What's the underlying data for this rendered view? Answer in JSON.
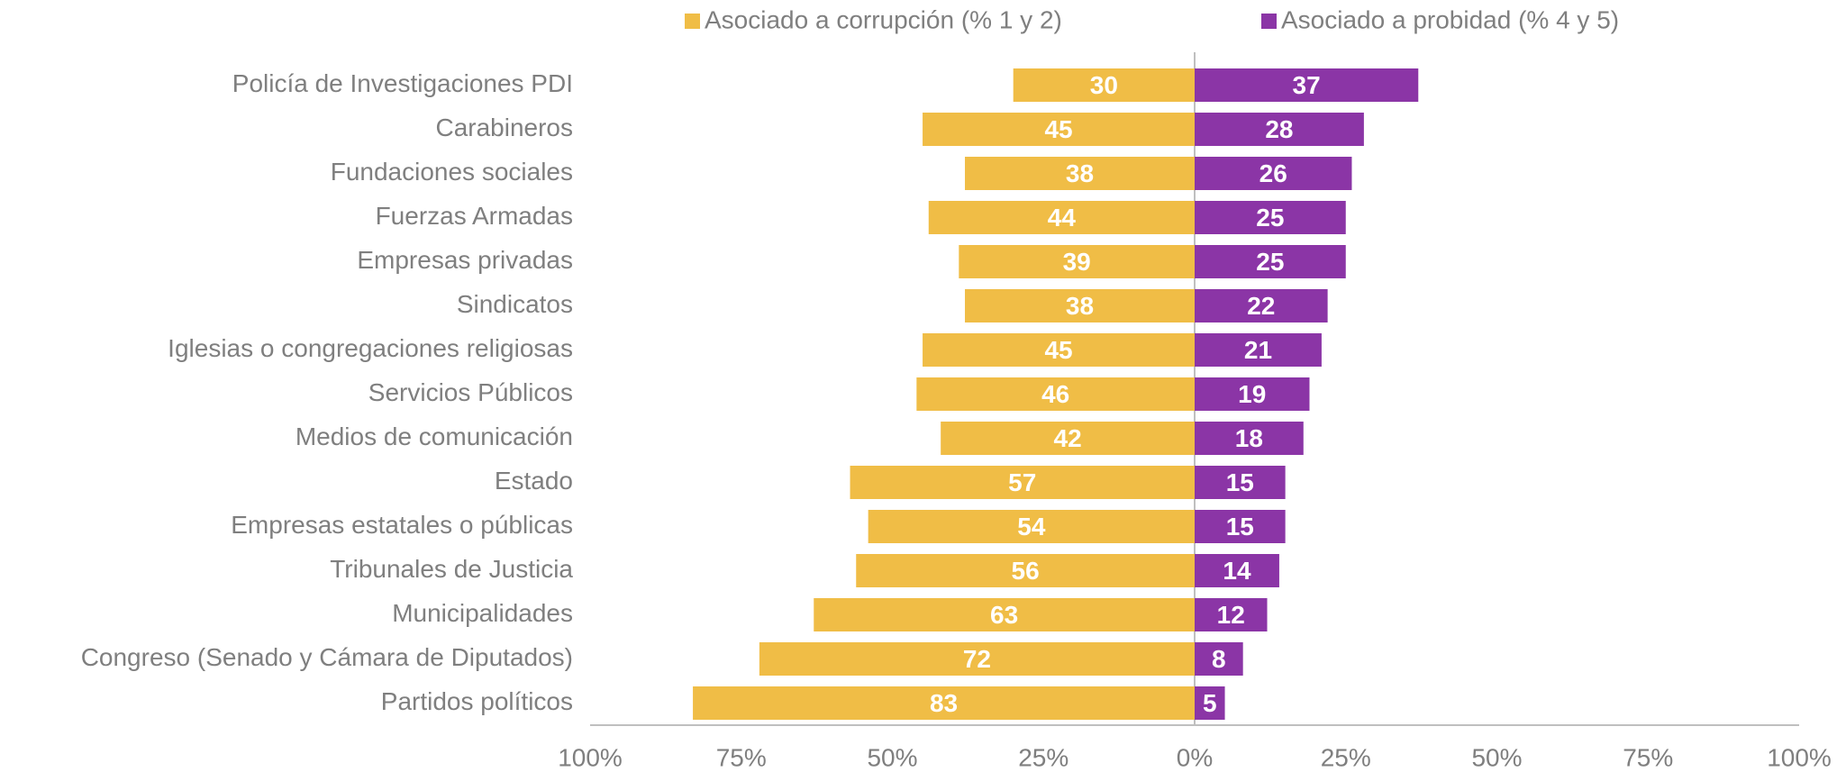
{
  "chart_data": {
    "type": "barh",
    "categories": [
      "Policía de Investigaciones PDI",
      "Carabineros",
      "Fundaciones sociales",
      "Fuerzas Armadas",
      "Empresas privadas",
      "Sindicatos",
      "Iglesias o congregaciones religiosas",
      "Servicios Públicos",
      "Medios de comunicación",
      "Estado",
      "Empresas estatales o públicas",
      "Tribunales de Justicia",
      "Municipalidades",
      "Congreso (Senado y Cámara de Diputados)",
      "Partidos políticos"
    ],
    "series": [
      {
        "name": "Asociado a corrupción (% 1 y 2)",
        "color": "#F0BD46",
        "values": [
          -30,
          -45,
          -38,
          -44,
          -39,
          -38,
          -45,
          -46,
          -42,
          -57,
          -54,
          -56,
          -63,
          -72,
          -83
        ],
        "value_labels": [
          "30",
          "45",
          "38",
          "44",
          "39",
          "38",
          "45",
          "46",
          "42",
          "57",
          "54",
          "56",
          "63",
          "72",
          "83"
        ]
      },
      {
        "name": "Asociado a probidad (% 4 y 5)",
        "color": "#8B35A6",
        "values": [
          37,
          28,
          26,
          25,
          25,
          22,
          21,
          19,
          18,
          15,
          15,
          14,
          12,
          8,
          5
        ]
      }
    ],
    "xlim": [
      -100,
      100
    ],
    "xticks": [
      {
        "value": -100,
        "label": "100%"
      },
      {
        "value": -75,
        "label": "75%"
      },
      {
        "value": -50,
        "label": "50%"
      },
      {
        "value": -25,
        "label": "25%"
      },
      {
        "value": 0,
        "label": "0%"
      },
      {
        "value": 25,
        "label": "25%"
      },
      {
        "value": 50,
        "label": "50%"
      },
      {
        "value": 75,
        "label": "75%"
      },
      {
        "value": 100,
        "label": "100%"
      }
    ],
    "legend": "top"
  }
}
